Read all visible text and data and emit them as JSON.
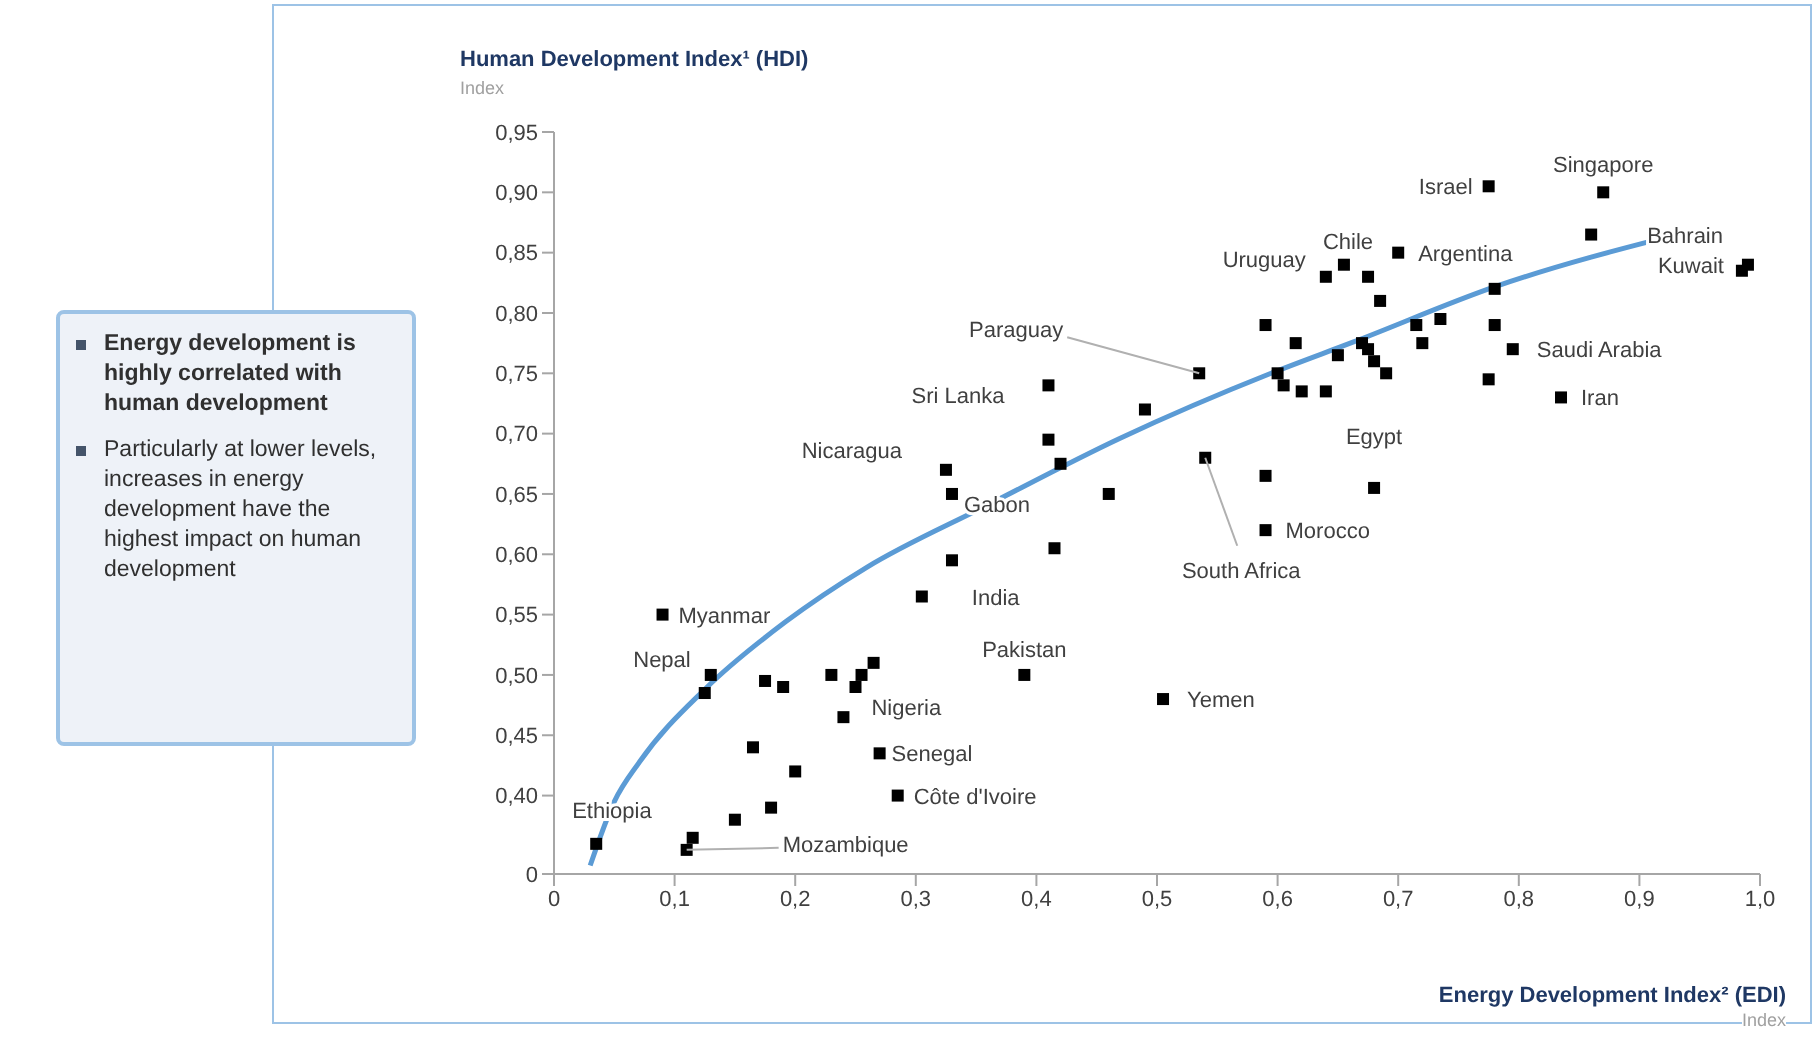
{
  "chart_data": {
    "type": "scatter",
    "xlabel": "Energy Development Index² (EDI)",
    "ylabel": "Human Development Index¹ (HDI)",
    "xlim": [
      0,
      1.0
    ],
    "xticks": [
      0,
      {
        "value": 0.1,
        "label": "0,1"
      },
      {
        "value": 0.2,
        "label": "0,2"
      },
      {
        "value": 0.3,
        "label": "0,3"
      },
      {
        "value": 0.4,
        "label": "0,4"
      },
      {
        "value": 0.5,
        "label": "0,5"
      },
      {
        "value": 0.6,
        "label": "0,6"
      },
      {
        "value": 0.7,
        "label": "0,7"
      },
      {
        "value": 0.8,
        "label": "0,8"
      },
      {
        "value": 0.9,
        "label": "0,9"
      },
      {
        "value": 1.0,
        "label": "1,0"
      }
    ],
    "ylim": [
      0.335,
      0.95
    ],
    "yticks": [
      {
        "value": 0.335,
        "label": "0"
      },
      {
        "value": 0.4,
        "label": "0,40"
      },
      {
        "value": 0.45,
        "label": "0,45"
      },
      {
        "value": 0.5,
        "label": "0,50"
      },
      {
        "value": 0.55,
        "label": "0,55"
      },
      {
        "value": 0.6,
        "label": "0,60"
      },
      {
        "value": 0.65,
        "label": "0,65"
      },
      {
        "value": 0.7,
        "label": "0,70"
      },
      {
        "value": 0.75,
        "label": "0,75"
      },
      {
        "value": 0.8,
        "label": "0,80"
      },
      {
        "value": 0.85,
        "label": "0,85"
      },
      {
        "value": 0.9,
        "label": "0,90"
      },
      {
        "value": 0.95,
        "label": "0,95"
      }
    ],
    "grid": false,
    "legend": false,
    "marker": "square",
    "series": [
      {
        "type": "scatter",
        "color": "#000000",
        "x": [
          0.035,
          0.11,
          0.115,
          0.15,
          0.18,
          0.2,
          0.165,
          0.09,
          0.13,
          0.125,
          0.175,
          0.19,
          0.23,
          0.25,
          0.255,
          0.265,
          0.24,
          0.27,
          0.285,
          0.305,
          0.33,
          0.415,
          0.39,
          0.33,
          0.46,
          0.325,
          0.41,
          0.41,
          0.42,
          0.535,
          0.49,
          0.54,
          0.59,
          0.68,
          0.59,
          0.505,
          0.59,
          0.615,
          0.6,
          0.605,
          0.62,
          0.64,
          0.65,
          0.67,
          0.675,
          0.68,
          0.69,
          0.685,
          0.64,
          0.655,
          0.675,
          0.7,
          0.715,
          0.72,
          0.735,
          0.775,
          0.78,
          0.78,
          0.795,
          0.835,
          0.775,
          0.87,
          0.86,
          0.99,
          0.985
        ],
        "values": [
          0.36,
          0.355,
          0.365,
          0.38,
          0.39,
          0.42,
          0.44,
          0.55,
          0.5,
          0.485,
          0.495,
          0.49,
          0.5,
          0.49,
          0.5,
          0.51,
          0.465,
          0.435,
          0.4,
          0.565,
          0.595,
          0.605,
          0.5,
          0.65,
          0.65,
          0.67,
          0.74,
          0.695,
          0.675,
          0.75,
          0.72,
          0.68,
          0.665,
          0.655,
          0.62,
          0.48,
          0.79,
          0.775,
          0.75,
          0.74,
          0.735,
          0.735,
          0.765,
          0.775,
          0.77,
          0.76,
          0.75,
          0.81,
          0.83,
          0.84,
          0.83,
          0.85,
          0.79,
          0.775,
          0.795,
          0.745,
          0.79,
          0.82,
          0.77,
          0.73,
          0.905,
          0.9,
          0.865,
          0.84,
          0.835
        ]
      },
      {
        "type": "line",
        "color": "#5b9bd5",
        "marker": "none",
        "line_style": "solid",
        "x": [
          0.03,
          0.05,
          0.071,
          0.126,
          0.192,
          0.259,
          0.358,
          0.469,
          0.597,
          0.663,
          0.781,
          0.939
        ],
        "values": [
          0.342,
          0.395,
          0.428,
          0.489,
          0.544,
          0.589,
          0.64,
          0.696,
          0.751,
          0.776,
          0.822,
          0.867
        ]
      }
    ],
    "annotations": [
      "Index",
      "Index",
      "Energy development is highly correlated with human development",
      "Particularly at lower levels, increases in energy development have the highest impact on human development",
      {
        "text": "Israel",
        "x": 0.775,
        "y": 0.905
      },
      {
        "text": "Singapore",
        "x": 0.87,
        "y": 0.9
      },
      {
        "text": "Bahrain",
        "x": 0.86,
        "y": 0.865
      },
      {
        "text": "Kuwait",
        "x": 0.99,
        "y": 0.84
      },
      {
        "text": "Chile",
        "x": 0.675,
        "y": 0.83
      },
      {
        "text": "Uruguay",
        "x": 0.64,
        "y": 0.83
      },
      {
        "text": "Argentina",
        "x": 0.7,
        "y": 0.85
      },
      {
        "text": "Paraguay",
        "x": 0.535,
        "y": 0.75
      },
      {
        "text": "Saudi Arabia",
        "x": 0.795,
        "y": 0.77
      },
      {
        "text": "Iran",
        "x": 0.835,
        "y": 0.73
      },
      {
        "text": "Sri Lanka",
        "x": 0.41,
        "y": 0.74
      },
      {
        "text": "Nicaragua",
        "x": 0.325,
        "y": 0.67
      },
      {
        "text": "Gabon",
        "x": 0.33,
        "y": 0.65
      },
      {
        "text": "Egypt",
        "x": 0.68,
        "y": 0.655
      },
      {
        "text": "Morocco",
        "x": 0.59,
        "y": 0.62
      },
      {
        "text": "South Africa",
        "x": 0.54,
        "y": 0.68
      },
      {
        "text": "India",
        "x": 0.305,
        "y": 0.565
      },
      {
        "text": "Pakistan",
        "x": 0.39,
        "y": 0.5
      },
      {
        "text": "Myanmar",
        "x": 0.09,
        "y": 0.55
      },
      {
        "text": "Nepal",
        "x": 0.13,
        "y": 0.5
      },
      {
        "text": "Nigeria",
        "x": 0.24,
        "y": 0.465
      },
      {
        "text": "Senegal",
        "x": 0.27,
        "y": 0.435
      },
      {
        "text": "Côte d'Ivoire",
        "x": 0.285,
        "y": 0.4
      },
      {
        "text": "Yemen",
        "x": 0.505,
        "y": 0.48
      },
      {
        "text": "Ethiopia",
        "x": 0.035,
        "y": 0.36
      },
      {
        "text": "Mozambique",
        "x": 0.11,
        "y": 0.355
      }
    ]
  }
}
